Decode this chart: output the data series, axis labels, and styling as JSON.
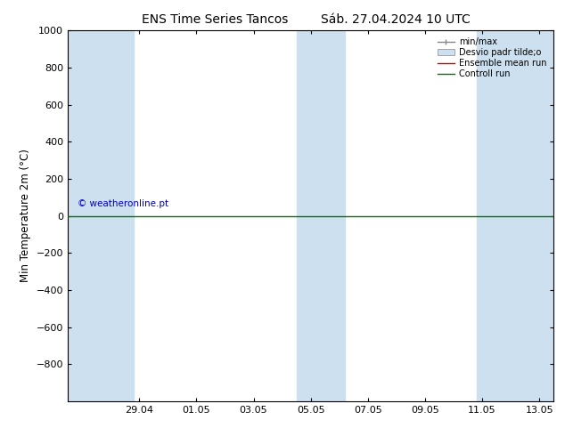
{
  "title_left": "ENS Time Series Tancos",
  "title_right": "Sáb. 27.04.2024 10 UTC",
  "title_right_raw": "S acute;b. 27.04.2024 10 UTC",
  "ylabel": "Min Temperature 2m (°C)",
  "ylim_top": -1000,
  "ylim_bottom": 1000,
  "yticks": [
    -800,
    -600,
    -400,
    -200,
    0,
    200,
    400,
    600,
    800,
    1000
  ],
  "x_tick_labels": [
    "29.04",
    "01.05",
    "03.05",
    "05.05",
    "07.05",
    "09.05",
    "11.05",
    "13.05"
  ],
  "x_start_day": 0,
  "x_end_day": 16,
  "shaded_bands": [
    {
      "xmin": -0.5,
      "xmax": 1.8
    },
    {
      "xmin": 7.5,
      "xmax": 9.2
    },
    {
      "xmin": 13.8,
      "xmax": 16.5
    }
  ],
  "control_run_y": 0,
  "background_color": "#ffffff",
  "shade_color": "#cce0f0",
  "control_run_color": "#007700",
  "ensemble_mean_color": "#cc0000",
  "minmax_color": "#888888",
  "watermark": "© weatheronline.pt",
  "watermark_color": "#0000bb",
  "legend_minmax": "min/max",
  "legend_std": "Desvio padr tilde;o",
  "legend_ens": "Ensemble mean run",
  "legend_ctrl": "Controll run",
  "font_size": 8.5,
  "title_font_size": 10,
  "tick_font_size": 8
}
